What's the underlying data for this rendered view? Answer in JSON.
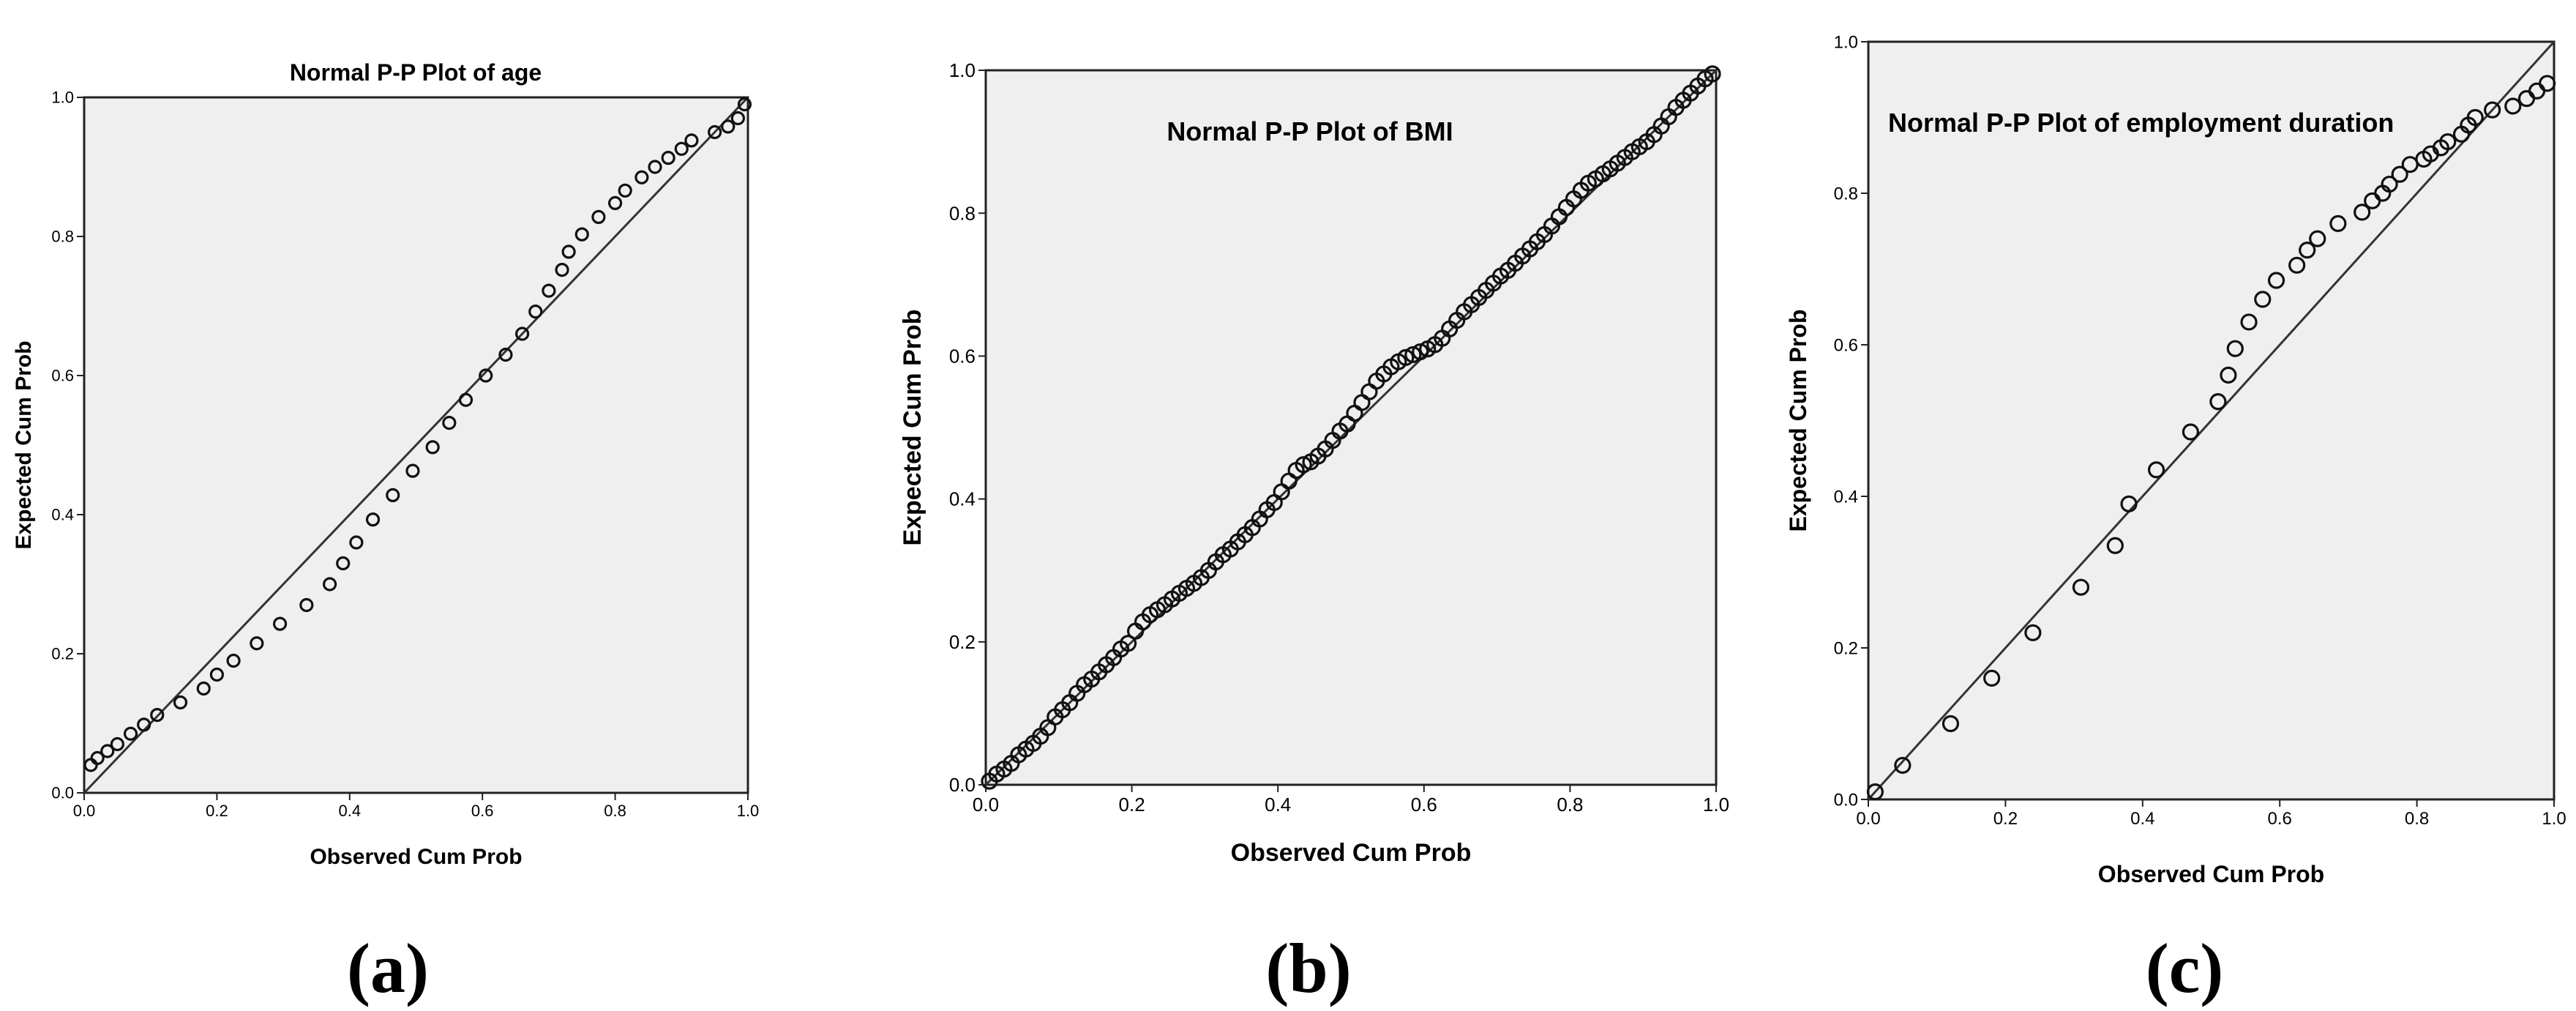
{
  "chart_data": [
    {
      "panel": "(a)",
      "type": "scatter",
      "title": "Normal P-P Plot of age",
      "xlabel": "Observed Cum Prob",
      "ylabel": "Expected Cum Prob",
      "xlim": [
        0,
        1
      ],
      "ylim": [
        0,
        1
      ],
      "xticks": [
        "0.0",
        "0.2",
        "0.4",
        "0.6",
        "0.8",
        "1.0"
      ],
      "yticks": [
        "0.0",
        "0.2",
        "0.4",
        "0.6",
        "0.8",
        "1.0"
      ],
      "background": "#efefef",
      "reference_line": [
        [
          0,
          0
        ],
        [
          1,
          1
        ]
      ],
      "points": [
        [
          0.01,
          0.04
        ],
        [
          0.02,
          0.05
        ],
        [
          0.035,
          0.06
        ],
        [
          0.05,
          0.07
        ],
        [
          0.07,
          0.085
        ],
        [
          0.09,
          0.098
        ],
        [
          0.11,
          0.112
        ],
        [
          0.145,
          0.13
        ],
        [
          0.18,
          0.15
        ],
        [
          0.2,
          0.17
        ],
        [
          0.225,
          0.19
        ],
        [
          0.26,
          0.215
        ],
        [
          0.295,
          0.243
        ],
        [
          0.335,
          0.27
        ],
        [
          0.37,
          0.3
        ],
        [
          0.39,
          0.33
        ],
        [
          0.41,
          0.36
        ],
        [
          0.435,
          0.393
        ],
        [
          0.465,
          0.428
        ],
        [
          0.495,
          0.463
        ],
        [
          0.525,
          0.497
        ],
        [
          0.55,
          0.532
        ],
        [
          0.575,
          0.565
        ],
        [
          0.605,
          0.6
        ],
        [
          0.635,
          0.63
        ],
        [
          0.66,
          0.66
        ],
        [
          0.68,
          0.692
        ],
        [
          0.7,
          0.722
        ],
        [
          0.72,
          0.752
        ],
        [
          0.73,
          0.778
        ],
        [
          0.75,
          0.803
        ],
        [
          0.775,
          0.828
        ],
        [
          0.8,
          0.848
        ],
        [
          0.815,
          0.866
        ],
        [
          0.84,
          0.885
        ],
        [
          0.86,
          0.9
        ],
        [
          0.88,
          0.913
        ],
        [
          0.9,
          0.926
        ],
        [
          0.915,
          0.938
        ],
        [
          0.95,
          0.95
        ],
        [
          0.97,
          0.958
        ],
        [
          0.985,
          0.97
        ],
        [
          0.995,
          0.99
        ]
      ]
    },
    {
      "panel": "(b)",
      "type": "scatter",
      "title": "Normal P-P Plot of BMI",
      "xlabel": "Observed Cum Prob",
      "ylabel": "Expected Cum Prob",
      "xlim": [
        0,
        1
      ],
      "ylim": [
        0,
        1
      ],
      "xticks": [
        "0.0",
        "0.2",
        "0.4",
        "0.6",
        "0.8",
        "1.0"
      ],
      "yticks": [
        "0.0",
        "0.2",
        "0.4",
        "0.6",
        "0.8",
        "1.0"
      ],
      "background": "#efefef",
      "reference_line": [
        [
          0,
          0
        ],
        [
          1,
          1
        ]
      ],
      "points": [
        [
          0.005,
          0.005
        ],
        [
          0.015,
          0.015
        ],
        [
          0.025,
          0.022
        ],
        [
          0.035,
          0.03
        ],
        [
          0.045,
          0.042
        ],
        [
          0.055,
          0.05
        ],
        [
          0.065,
          0.058
        ],
        [
          0.075,
          0.068
        ],
        [
          0.085,
          0.08
        ],
        [
          0.095,
          0.095
        ],
        [
          0.105,
          0.105
        ],
        [
          0.115,
          0.115
        ],
        [
          0.125,
          0.128
        ],
        [
          0.135,
          0.14
        ],
        [
          0.145,
          0.148
        ],
        [
          0.155,
          0.158
        ],
        [
          0.165,
          0.168
        ],
        [
          0.175,
          0.178
        ],
        [
          0.185,
          0.19
        ],
        [
          0.195,
          0.198
        ],
        [
          0.205,
          0.215
        ],
        [
          0.215,
          0.228
        ],
        [
          0.225,
          0.238
        ],
        [
          0.235,
          0.245
        ],
        [
          0.245,
          0.252
        ],
        [
          0.255,
          0.26
        ],
        [
          0.265,
          0.268
        ],
        [
          0.275,
          0.275
        ],
        [
          0.285,
          0.282
        ],
        [
          0.295,
          0.29
        ],
        [
          0.305,
          0.3
        ],
        [
          0.315,
          0.312
        ],
        [
          0.325,
          0.322
        ],
        [
          0.335,
          0.33
        ],
        [
          0.345,
          0.34
        ],
        [
          0.355,
          0.35
        ],
        [
          0.365,
          0.36
        ],
        [
          0.375,
          0.372
        ],
        [
          0.385,
          0.385
        ],
        [
          0.395,
          0.395
        ],
        [
          0.405,
          0.41
        ],
        [
          0.415,
          0.425
        ],
        [
          0.425,
          0.44
        ],
        [
          0.435,
          0.448
        ],
        [
          0.445,
          0.452
        ],
        [
          0.455,
          0.46
        ],
        [
          0.465,
          0.47
        ],
        [
          0.475,
          0.482
        ],
        [
          0.485,
          0.495
        ],
        [
          0.495,
          0.505
        ],
        [
          0.505,
          0.52
        ],
        [
          0.515,
          0.535
        ],
        [
          0.525,
          0.55
        ],
        [
          0.535,
          0.565
        ],
        [
          0.545,
          0.575
        ],
        [
          0.555,
          0.585
        ],
        [
          0.565,
          0.592
        ],
        [
          0.575,
          0.598
        ],
        [
          0.585,
          0.602
        ],
        [
          0.595,
          0.606
        ],
        [
          0.605,
          0.61
        ],
        [
          0.615,
          0.616
        ],
        [
          0.625,
          0.625
        ],
        [
          0.635,
          0.638
        ],
        [
          0.645,
          0.65
        ],
        [
          0.655,
          0.662
        ],
        [
          0.665,
          0.672
        ],
        [
          0.675,
          0.682
        ],
        [
          0.685,
          0.692
        ],
        [
          0.695,
          0.702
        ],
        [
          0.705,
          0.712
        ],
        [
          0.715,
          0.72
        ],
        [
          0.725,
          0.73
        ],
        [
          0.735,
          0.74
        ],
        [
          0.745,
          0.75
        ],
        [
          0.755,
          0.76
        ],
        [
          0.765,
          0.77
        ],
        [
          0.775,
          0.782
        ],
        [
          0.785,
          0.795
        ],
        [
          0.795,
          0.808
        ],
        [
          0.805,
          0.82
        ],
        [
          0.815,
          0.832
        ],
        [
          0.825,
          0.842
        ],
        [
          0.835,
          0.848
        ],
        [
          0.845,
          0.855
        ],
        [
          0.855,
          0.862
        ],
        [
          0.865,
          0.87
        ],
        [
          0.875,
          0.878
        ],
        [
          0.885,
          0.886
        ],
        [
          0.895,
          0.893
        ],
        [
          0.905,
          0.9
        ],
        [
          0.915,
          0.91
        ],
        [
          0.925,
          0.922
        ],
        [
          0.935,
          0.935
        ],
        [
          0.945,
          0.948
        ],
        [
          0.955,
          0.958
        ],
        [
          0.965,
          0.968
        ],
        [
          0.975,
          0.978
        ],
        [
          0.985,
          0.988
        ],
        [
          0.995,
          0.995
        ]
      ]
    },
    {
      "panel": "(c)",
      "type": "scatter",
      "title": "Normal P-P Plot of employment duration",
      "xlabel": "Observed Cum Prob",
      "ylabel": "Expected Cum Prob",
      "xlim": [
        0,
        1
      ],
      "ylim": [
        0,
        1
      ],
      "xticks": [
        "0.0",
        "0.2",
        "0.4",
        "0.6",
        "0.8",
        "1.0"
      ],
      "yticks": [
        "0.0",
        "0.2",
        "0.4",
        "0.6",
        "0.8",
        "1.0"
      ],
      "background": "#efefef",
      "reference_line": [
        [
          0,
          0
        ],
        [
          1,
          1
        ]
      ],
      "points": [
        [
          0.01,
          0.01
        ],
        [
          0.05,
          0.045
        ],
        [
          0.12,
          0.1
        ],
        [
          0.18,
          0.16
        ],
        [
          0.24,
          0.22
        ],
        [
          0.31,
          0.28
        ],
        [
          0.36,
          0.335
        ],
        [
          0.38,
          0.39
        ],
        [
          0.42,
          0.435
        ],
        [
          0.47,
          0.485
        ],
        [
          0.51,
          0.525
        ],
        [
          0.525,
          0.56
        ],
        [
          0.535,
          0.595
        ],
        [
          0.555,
          0.63
        ],
        [
          0.575,
          0.66
        ],
        [
          0.595,
          0.685
        ],
        [
          0.625,
          0.705
        ],
        [
          0.64,
          0.725
        ],
        [
          0.655,
          0.74
        ],
        [
          0.685,
          0.76
        ],
        [
          0.72,
          0.775
        ],
        [
          0.735,
          0.79
        ],
        [
          0.75,
          0.8
        ],
        [
          0.76,
          0.812
        ],
        [
          0.775,
          0.825
        ],
        [
          0.79,
          0.838
        ],
        [
          0.81,
          0.845
        ],
        [
          0.82,
          0.852
        ],
        [
          0.835,
          0.86
        ],
        [
          0.845,
          0.868
        ],
        [
          0.865,
          0.878
        ],
        [
          0.875,
          0.89
        ],
        [
          0.885,
          0.9
        ],
        [
          0.91,
          0.91
        ],
        [
          0.94,
          0.915
        ],
        [
          0.96,
          0.925
        ],
        [
          0.975,
          0.935
        ],
        [
          0.99,
          0.945
        ]
      ]
    }
  ],
  "captions": [
    "(a)",
    "(b)",
    "(c)"
  ]
}
